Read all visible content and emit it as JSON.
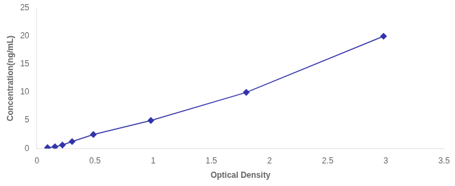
{
  "chart_data": {
    "type": "line",
    "x": [
      0.092,
      0.156,
      0.22,
      0.303,
      0.486,
      0.98,
      1.8,
      2.98
    ],
    "values": [
      0.156,
      0.312,
      0.625,
      1.25,
      2.5,
      5.0,
      10.0,
      20.0
    ],
    "color": "#3333AA",
    "marker": "diamond",
    "xlabel": "Optical Density",
    "ylabel": "Concentration(ng/mL)",
    "xlim": [
      0,
      3.5
    ],
    "ylim": [
      0,
      25
    ],
    "xticks": [
      0,
      0.5,
      1,
      1.5,
      2,
      2.5,
      3,
      3.5
    ],
    "yticks": [
      0,
      5,
      10,
      15,
      20,
      25
    ],
    "grid": false
  }
}
